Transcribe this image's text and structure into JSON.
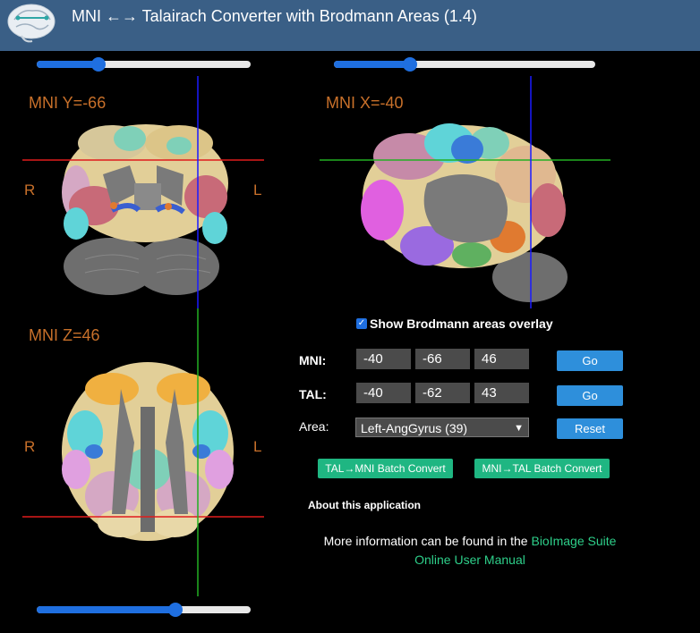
{
  "header": {
    "title": "MNI ←→ Talairach Converter with Brodmann Areas (1.4)",
    "logo_icon": "brain-logo-icon"
  },
  "sliders": {
    "coronal": {
      "value_fraction": 0.29
    },
    "sagittal": {
      "value_fraction": 0.29
    },
    "axial": {
      "value_fraction": 0.65
    }
  },
  "views": {
    "coronal": {
      "label": "MNI Y=-66",
      "left_marker": "R",
      "right_marker": "L"
    },
    "sagittal": {
      "label": "MNI X=-40"
    },
    "axial": {
      "label": "MNI Z=46",
      "left_marker": "R",
      "right_marker": "L"
    }
  },
  "controls": {
    "overlay_checkbox": {
      "label": "Show Brodmann areas overlay",
      "checked": true
    },
    "mni": {
      "label": "MNI:",
      "x": "-40",
      "y": "-66",
      "z": "46",
      "button": "Go"
    },
    "tal": {
      "label": "TAL:",
      "x": "-40",
      "y": "-62",
      "z": "43",
      "button": "Go"
    },
    "area": {
      "label": "Area:",
      "selected": "Left-AngGyrus (39)",
      "button": "Reset"
    },
    "batch_tal_mni": "TAL→MNI Batch Convert",
    "batch_mni_tal": "MNI→TAL Batch Convert",
    "about": "About this application",
    "info_prefix": "More information can be found in the",
    "info_link_1": "BioImage Suite",
    "info_link_2": "Online User Manual"
  },
  "colors": {
    "header_bg": "#3a5f86",
    "crosshair_red": "#e01c1c",
    "crosshair_green": "#22b022",
    "crosshair_blue": "#1a1aff",
    "label_orange": "#c8702a",
    "button_blue": "#2e8fdb",
    "button_green": "#1fb682"
  }
}
